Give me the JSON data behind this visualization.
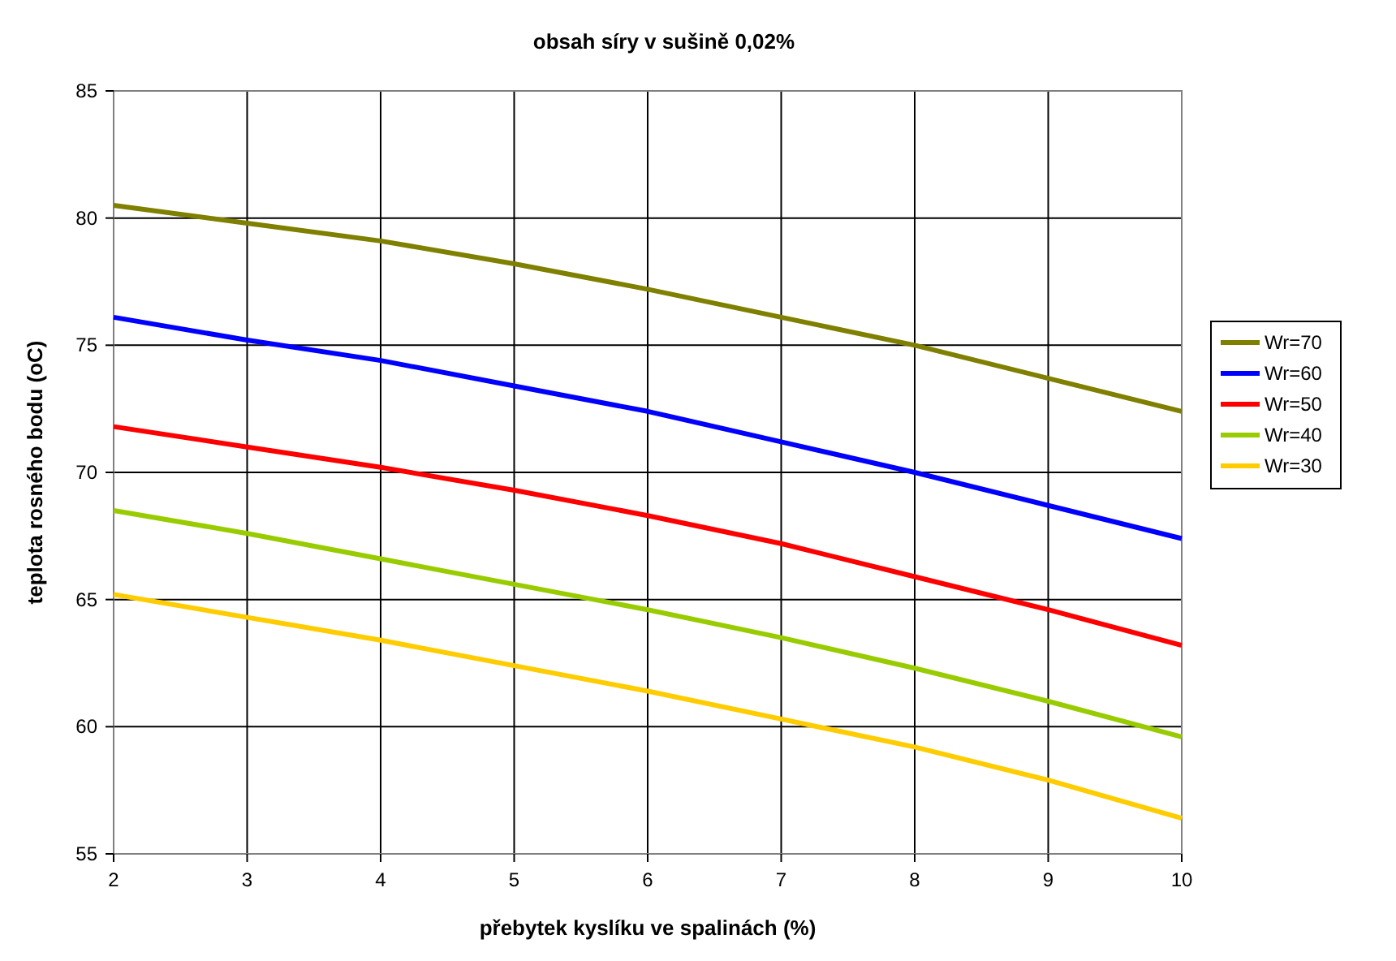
{
  "chart_data": {
    "type": "line",
    "title": "obsah síry v sušině 0,02%",
    "xlabel": "přebytek kyslíku ve spalinách (%)",
    "ylabel": "teplota rosného bodu (oC)",
    "x": [
      2,
      3,
      4,
      5,
      6,
      7,
      8,
      9,
      10
    ],
    "xlim": [
      2,
      10
    ],
    "xticks": [
      2,
      3,
      4,
      5,
      6,
      7,
      8,
      9,
      10
    ],
    "ylim": [
      55,
      85
    ],
    "yticks": [
      55,
      60,
      65,
      70,
      75,
      80,
      85
    ],
    "grid": true,
    "legend": "right",
    "marker": "none",
    "line_style": "solid",
    "series": [
      {
        "name": "Wr=70",
        "color": "#808000",
        "values": [
          80.5,
          79.8,
          79.1,
          78.2,
          77.2,
          76.1,
          75.0,
          73.7,
          72.4
        ]
      },
      {
        "name": "Wr=60",
        "color": "#0000ff",
        "values": [
          76.1,
          75.2,
          74.4,
          73.4,
          72.4,
          71.2,
          70.0,
          68.7,
          67.4
        ]
      },
      {
        "name": "Wr=50",
        "color": "#ff0000",
        "values": [
          71.8,
          71.0,
          70.2,
          69.3,
          68.3,
          67.2,
          65.9,
          64.6,
          63.2
        ]
      },
      {
        "name": "Wr=40",
        "color": "#99cc00",
        "values": [
          68.5,
          67.6,
          66.6,
          65.6,
          64.6,
          63.5,
          62.3,
          61.0,
          59.6
        ]
      },
      {
        "name": "Wr=30",
        "color": "#ffcc00",
        "values": [
          65.2,
          64.3,
          63.4,
          62.4,
          61.4,
          60.3,
          59.2,
          57.9,
          56.4
        ]
      }
    ]
  }
}
